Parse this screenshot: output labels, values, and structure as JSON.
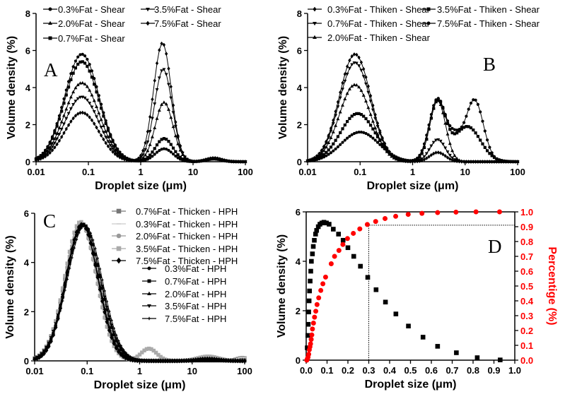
{
  "chart_data": [
    {
      "panel": "A",
      "type": "line",
      "xscale": "log",
      "xlim": [
        0.01,
        100
      ],
      "ylim": [
        0,
        8
      ],
      "xticks": [
        0.01,
        0.1,
        1,
        10,
        100
      ],
      "xtick_labels": [
        "0.01",
        "0.1",
        "1",
        "10",
        "100"
      ],
      "yticks": [
        0,
        2,
        4,
        6,
        8
      ],
      "ytick_labels": [
        "0",
        "2",
        "4",
        "6",
        "8"
      ],
      "xlabel": "Droplet size (μm)",
      "ylabel": "Volume density (%)",
      "series": [
        {
          "name": "0.3%Fat - Shear",
          "marker": "circle",
          "color": "#000000",
          "modes": [
            [
              0.075,
              5.8,
              0.33
            ],
            [
              2.8,
              0.7,
              0.17
            ],
            [
              25,
              0.2,
              0.15
            ]
          ]
        },
        {
          "name": "0.7%Fat - Shear",
          "marker": "square",
          "color": "#000000",
          "modes": [
            [
              0.075,
              5.4,
              0.33
            ],
            [
              2.8,
              1.25,
              0.17
            ],
            [
              25,
              0.15,
              0.15
            ]
          ]
        },
        {
          "name": "2.0%Fat - Shear",
          "marker": "triangle",
          "color": "#000000",
          "modes": [
            [
              0.075,
              4.25,
              0.33
            ],
            [
              2.8,
              3.2,
              0.17
            ],
            [
              25,
              0.15,
              0.15
            ]
          ]
        },
        {
          "name": "3.5%Fat - Shear",
          "marker": "triangle-down",
          "color": "#000000",
          "modes": [
            [
              0.075,
              3.5,
              0.33
            ],
            [
              2.7,
              5.0,
              0.17
            ],
            [
              25,
              0.15,
              0.15
            ]
          ]
        },
        {
          "name": "7.5%Fat - Shear",
          "marker": "diamond",
          "color": "#000000",
          "modes": [
            [
              0.075,
              2.65,
              0.33
            ],
            [
              2.6,
              6.4,
              0.17
            ],
            [
              25,
              0.2,
              0.15
            ]
          ]
        }
      ]
    },
    {
      "panel": "B",
      "type": "line",
      "xscale": "log",
      "xlim": [
        0.01,
        100
      ],
      "ylim": [
        0,
        8
      ],
      "xticks": [
        0.01,
        0.1,
        1,
        10,
        100
      ],
      "xtick_labels": [
        "0.01",
        "0.1",
        "1",
        "10",
        "100"
      ],
      "yticks": [
        0,
        2,
        4,
        6,
        8
      ],
      "ytick_labels": [
        "0",
        "2",
        "4",
        "6",
        "8"
      ],
      "xlabel": "Droplet size (μm)",
      "ylabel": "Volume density (%)",
      "series": [
        {
          "name": "0.3%Fat - Thiken - Shear",
          "marker": "diamond",
          "color": "#000000",
          "modes": [
            [
              0.08,
              5.8,
              0.3
            ],
            [
              3.0,
              0.5,
              0.15
            ]
          ]
        },
        {
          "name": "0.7%Fat - Thiken - Shear",
          "marker": "triangle-down",
          "color": "#000000",
          "modes": [
            [
              0.08,
              5.35,
              0.3
            ],
            [
              3.0,
              1.2,
              0.15
            ]
          ]
        },
        {
          "name": "2.0%Fat - Thiken - Shear",
          "marker": "triangle",
          "color": "#000000",
          "modes": [
            [
              0.08,
              4.15,
              0.3
            ],
            [
              3.0,
              3.3,
              0.15
            ]
          ]
        },
        {
          "name": "3.5%Fat - Thiken - Shear",
          "marker": "square",
          "color": "#000000",
          "modes": [
            [
              0.09,
              2.6,
              0.33
            ],
            [
              3.0,
              3.2,
              0.15
            ],
            [
              11,
              1.9,
              0.25
            ]
          ]
        },
        {
          "name": "7.5%Fat - Thiken - Shear",
          "marker": "circle",
          "color": "#000000",
          "modes": [
            [
              0.1,
              1.6,
              0.36
            ],
            [
              3.0,
              3.4,
              0.16
            ],
            [
              6.5,
              1.0,
              0.12
            ],
            [
              15,
              3.35,
              0.17
            ]
          ]
        }
      ]
    },
    {
      "panel": "C",
      "type": "line",
      "xscale": "log",
      "xlim": [
        0.01,
        100
      ],
      "ylim": [
        0,
        6
      ],
      "xticks": [
        0.01,
        0.1,
        1,
        10,
        100
      ],
      "xtick_labels": [
        "0.01",
        "0.1",
        "1",
        "10",
        "100"
      ],
      "yticks": [
        0,
        2,
        4,
        6
      ],
      "ytick_labels": [
        "0",
        "2",
        "4",
        "6"
      ],
      "xlabel": "Droplet size (μm)",
      "ylabel": "Volume density (%)",
      "series": [
        {
          "name": "0.7%Fat - Thicken - HPH",
          "marker": "square",
          "color": "#777777",
          "modes": [
            [
              0.08,
              5.55,
              0.32
            ],
            [
              20,
              0.12,
              0.2
            ],
            [
              90,
              0.12,
              0.1
            ]
          ]
        },
        {
          "name": "0.3%Fat - Thicken - HPH",
          "marker": "dash",
          "color": "#cccccc",
          "modes": [
            [
              0.075,
              5.7,
              0.3
            ],
            [
              90,
              0.15,
              0.1
            ]
          ]
        },
        {
          "name": "2.0%Fat - Thicken - HPH",
          "marker": "circle",
          "color": "#999999",
          "modes": [
            [
              0.075,
              5.6,
              0.3
            ],
            [
              20,
              0.1,
              0.2
            ]
          ]
        },
        {
          "name": "3.5%Fat - Thicken - HPH",
          "marker": "square",
          "color": "#aaaaaa",
          "modes": [
            [
              0.075,
              5.65,
              0.3
            ],
            [
              1.5,
              0.5,
              0.15
            ],
            [
              20,
              0.18,
              0.2
            ]
          ]
        },
        {
          "name": "7.5%Fat - Thicken - HPH",
          "marker": "diamond",
          "color": "#000000",
          "modes": [
            [
              0.08,
              5.55,
              0.3
            ],
            [
              20,
              0.08,
              0.2
            ]
          ]
        },
        {
          "name": "0.3%Fat - HPH",
          "marker": "circle",
          "color": "#000000",
          "modes": [
            [
              0.08,
              5.55,
              0.3
            ]
          ]
        },
        {
          "name": "0.7%Fat - HPH",
          "marker": "square",
          "color": "#000000",
          "modes": [
            [
              0.085,
              5.55,
              0.32
            ]
          ]
        },
        {
          "name": "2.0%Fat - HPH",
          "marker": "triangle",
          "color": "#000000",
          "modes": [
            [
              0.08,
              5.55,
              0.31
            ]
          ]
        },
        {
          "name": "3.5%Fat - HPH",
          "marker": "triangle-down",
          "color": "#000000",
          "modes": [
            [
              0.085,
              5.5,
              0.33
            ],
            [
              20,
              0.08,
              0.2
            ]
          ]
        },
        {
          "name": "7.5%Fat - HPH",
          "marker": "plus",
          "color": "#000000",
          "modes": [
            [
              0.09,
              5.5,
              0.33
            ]
          ]
        }
      ]
    },
    {
      "panel": "D",
      "type": "scatter",
      "xscale": "linear",
      "xlim": [
        0,
        1.0
      ],
      "ylim": [
        0,
        6
      ],
      "y2lim": [
        0,
        1.0
      ],
      "xticks": [
        0,
        0.1,
        0.2,
        0.3,
        0.4,
        0.5,
        0.6,
        0.7,
        0.8,
        0.9,
        1.0
      ],
      "xtick_labels": [
        "0.0",
        "0.1",
        "0.2",
        "0.3",
        "0.4",
        "0.5",
        "0.6",
        "0.7",
        "0.8",
        "0.9",
        "1.0"
      ],
      "yticks": [
        0,
        2,
        4,
        6
      ],
      "ytick_labels": [
        "0",
        "2",
        "4",
        "6"
      ],
      "y2ticks": [
        0,
        0.1,
        0.2,
        0.3,
        0.4,
        0.5,
        0.6,
        0.7,
        0.8,
        0.9,
        1.0
      ],
      "y2tick_labels": [
        "0.0",
        "0.1",
        "0.2",
        "0.3",
        "0.4",
        "0.5",
        "0.6",
        "0.7",
        "0.8",
        "0.9",
        "1.0"
      ],
      "xlabel": "Droplet size (μm)",
      "ylabel": "Volume density (%)",
      "y2label": "Percentige (%)",
      "y2color": "#ff0000",
      "reference": {
        "x": 0.3,
        "y2": 0.91
      },
      "series": [
        {
          "name": "Volume density",
          "axis": "left",
          "marker": "square",
          "color": "#000000",
          "x": [
            0.005,
            0.008,
            0.01,
            0.012,
            0.014,
            0.016,
            0.019,
            0.022,
            0.025,
            0.03,
            0.034,
            0.039,
            0.045,
            0.05,
            0.058,
            0.066,
            0.075,
            0.085,
            0.097,
            0.11,
            0.13,
            0.155,
            0.177,
            0.2,
            0.228,
            0.26,
            0.295,
            0.335,
            0.38,
            0.43,
            0.49,
            0.56,
            0.63,
            0.72,
            0.82,
            0.93
          ],
          "y": [
            0.5,
            1.0,
            1.45,
            1.95,
            2.4,
            2.8,
            3.2,
            3.6,
            4.0,
            4.3,
            4.6,
            4.85,
            5.1,
            5.25,
            5.4,
            5.5,
            5.55,
            5.58,
            5.55,
            5.5,
            5.3,
            5.1,
            4.85,
            4.55,
            4.2,
            3.8,
            3.35,
            2.85,
            2.35,
            1.87,
            1.38,
            0.93,
            0.56,
            0.3,
            0.1,
            0.01
          ]
        },
        {
          "name": "Percentige",
          "axis": "right",
          "marker": "circle",
          "color": "#ff0000",
          "x": [
            0.003,
            0.006,
            0.009,
            0.012,
            0.015,
            0.018,
            0.021,
            0.024,
            0.027,
            0.03,
            0.035,
            0.04,
            0.046,
            0.052,
            0.06,
            0.07,
            0.08,
            0.093,
            0.12,
            0.136,
            0.157,
            0.176,
            0.198,
            0.226,
            0.257,
            0.293,
            0.333,
            0.378,
            0.429,
            0.489,
            0.555,
            0.63,
            0.718,
            0.814,
            0.927
          ],
          "y": [
            0.0,
            0.01,
            0.02,
            0.04,
            0.07,
            0.09,
            0.11,
            0.14,
            0.17,
            0.21,
            0.25,
            0.29,
            0.33,
            0.375,
            0.42,
            0.47,
            0.515,
            0.56,
            0.65,
            0.7,
            0.74,
            0.78,
            0.82,
            0.855,
            0.885,
            0.915,
            0.935,
            0.955,
            0.97,
            0.983,
            0.99,
            0.995,
            0.998,
            1.0,
            1.0
          ]
        }
      ]
    }
  ],
  "panel_letters": [
    "A",
    "B",
    "C",
    "D"
  ]
}
